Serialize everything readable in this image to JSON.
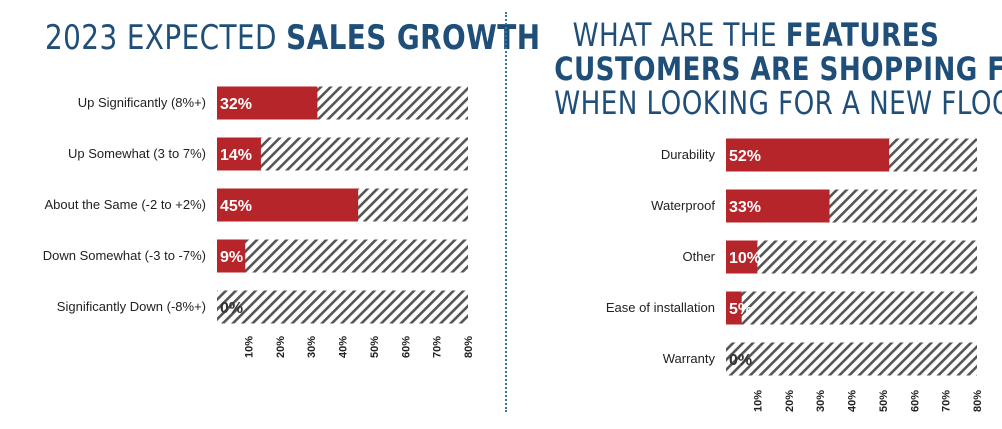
{
  "colors": {
    "title": "#1f4e79",
    "bar": "#b5252a",
    "hatch": "#555555",
    "divider": "#2e7d8c"
  },
  "chart_data": [
    {
      "type": "bar",
      "orientation": "horizontal",
      "title_plain": "2023 EXPECTED ",
      "title_bold": "SALES GROWTH",
      "categories": [
        "Up Significantly (8%+)",
        "Up Somewhat (3 to 7%)",
        "About the Same (-2 to +2%)",
        "Down Somewhat (-3 to -7%)",
        "Significantly Down (-8%+)"
      ],
      "values": [
        32,
        14,
        45,
        9,
        0
      ],
      "value_labels": [
        "32%",
        "14%",
        "45%",
        "9%",
        "0%"
      ],
      "xlim": [
        0,
        80
      ],
      "ticks": [
        "10%",
        "20%",
        "30%",
        "40%",
        "50%",
        "60%",
        "70%",
        "80%"
      ],
      "tick_values": [
        10,
        20,
        30,
        40,
        50,
        60,
        70,
        80
      ]
    },
    {
      "type": "bar",
      "orientation": "horizontal",
      "title_line1_plain": "WHAT ARE THE ",
      "title_line1_bold": "FEATURES",
      "title_line2_bold": "CUSTOMERS ARE SHOPPING FOR",
      "title_line3_plain": "WHEN LOOKING FOR A NEW FLOOR?",
      "categories": [
        "Durability",
        "Waterproof",
        "Other",
        "Ease of installation",
        "Warranty"
      ],
      "values": [
        52,
        33,
        10,
        5,
        0
      ],
      "value_labels": [
        "52%",
        "33%",
        "10%",
        "5%",
        "0%"
      ],
      "xlim": [
        0,
        80
      ],
      "ticks": [
        "10%",
        "20%",
        "30%",
        "40%",
        "50%",
        "60%",
        "70%",
        "80%"
      ],
      "tick_values": [
        10,
        20,
        30,
        40,
        50,
        60,
        70,
        80
      ]
    }
  ]
}
